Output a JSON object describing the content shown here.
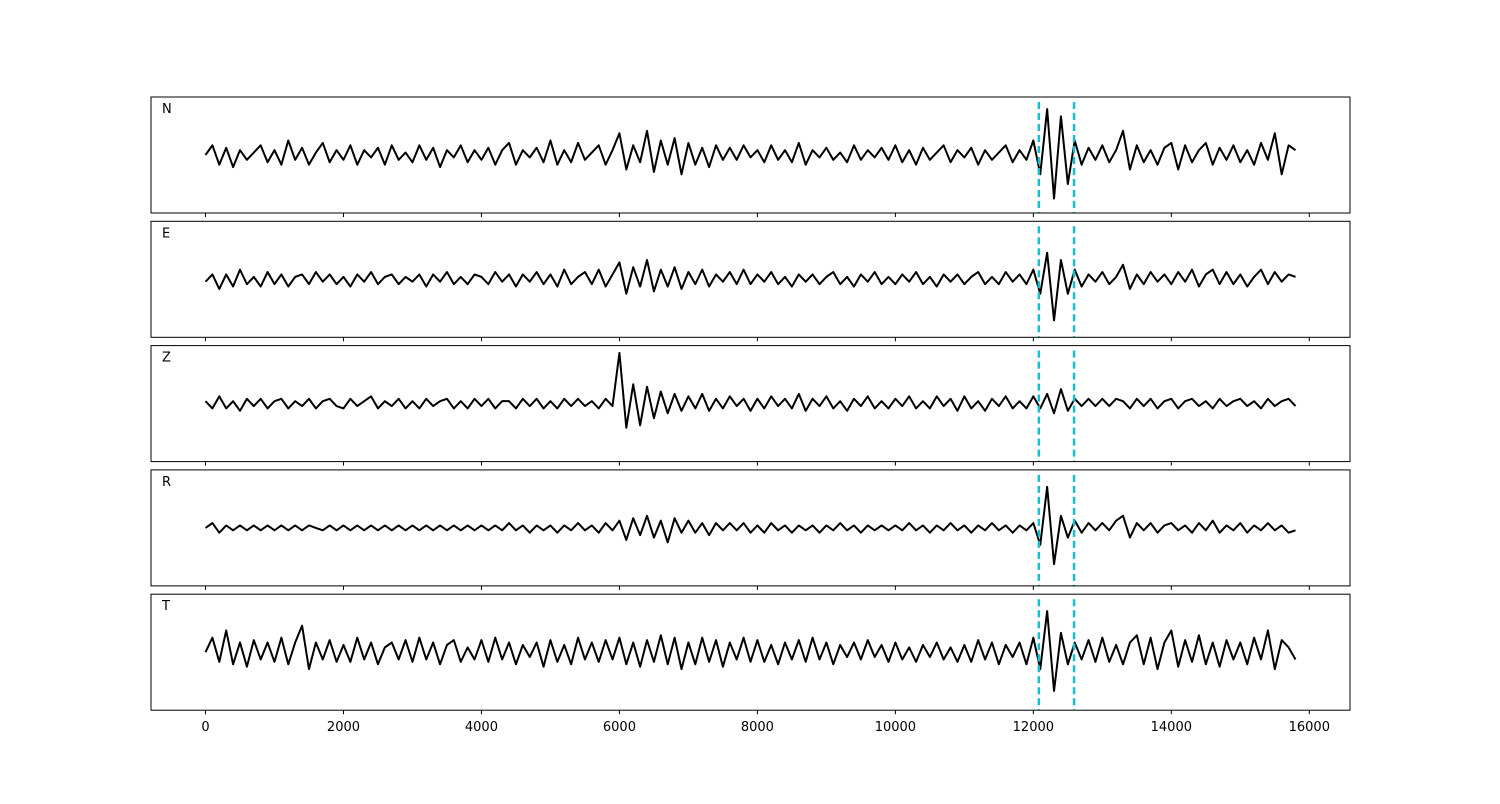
{
  "chart_data": {
    "type": "line",
    "layout": "stacked",
    "x": [
      0,
      100,
      200,
      300,
      400,
      500,
      600,
      700,
      800,
      900,
      1000,
      1100,
      1200,
      1300,
      1400,
      1500,
      1600,
      1700,
      1800,
      1900,
      2000,
      2100,
      2200,
      2300,
      2400,
      2500,
      2600,
      2700,
      2800,
      2900,
      3000,
      3100,
      3200,
      3300,
      3400,
      3500,
      3600,
      3700,
      3800,
      3900,
      4000,
      4100,
      4200,
      4300,
      4400,
      4500,
      4600,
      4700,
      4800,
      4900,
      5000,
      5100,
      5200,
      5300,
      5400,
      5500,
      5600,
      5700,
      5800,
      5900,
      6000,
      6100,
      6200,
      6300,
      6400,
      6500,
      6600,
      6700,
      6800,
      6900,
      7000,
      7100,
      7200,
      7300,
      7400,
      7500,
      7600,
      7700,
      7800,
      7900,
      8000,
      8100,
      8200,
      8300,
      8400,
      8500,
      8600,
      8700,
      8800,
      8900,
      9000,
      9100,
      9200,
      9300,
      9400,
      9500,
      9600,
      9700,
      9800,
      9900,
      10000,
      10100,
      10200,
      10300,
      10400,
      10500,
      10600,
      10700,
      10800,
      10900,
      11000,
      11100,
      11200,
      11300,
      11400,
      11500,
      11600,
      11700,
      11800,
      11900,
      12000,
      12100,
      12200,
      12300,
      12400,
      12500,
      12600,
      12700,
      12800,
      12900,
      13000,
      13100,
      13200,
      13300,
      13400,
      13500,
      13600,
      13700,
      13800,
      13900,
      14000,
      14100,
      14200,
      14300,
      14400,
      14500,
      14600,
      14700,
      14800,
      14900,
      15000,
      15100,
      15200,
      15300,
      15400,
      15500,
      15600,
      15700,
      15800
    ],
    "xlim": [
      -790,
      16590
    ],
    "xticks": [
      0,
      2000,
      4000,
      6000,
      8000,
      10000,
      12000,
      14000,
      16000
    ],
    "ylim": [
      -1.2,
      1.2
    ],
    "vlines": [
      12080,
      12590
    ],
    "vline_color": "#17becf",
    "series": [
      {
        "name": "N",
        "color": "#000000",
        "values": [
          0,
          0.2,
          -0.2,
          0.15,
          -0.25,
          0.1,
          -0.1,
          0.05,
          0.2,
          -0.15,
          0.1,
          -0.2,
          0.3,
          -0.1,
          0.15,
          -0.2,
          0.05,
          0.25,
          -0.15,
          0.1,
          -0.1,
          0.2,
          -0.2,
          0.1,
          -0.05,
          0.15,
          -0.2,
          0.2,
          -0.1,
          0.05,
          -0.15,
          0.2,
          -0.1,
          0.15,
          -0.25,
          0.1,
          -0.05,
          0.2,
          -0.15,
          0.1,
          -0.1,
          0.15,
          -0.2,
          0.1,
          0.25,
          -0.2,
          0.1,
          -0.05,
          0.15,
          -0.15,
          0.3,
          -0.2,
          0.1,
          -0.15,
          0.25,
          -0.1,
          0.05,
          0.2,
          -0.2,
          0.1,
          0.45,
          -0.3,
          0.2,
          -0.15,
          0.5,
          -0.35,
          0.3,
          -0.2,
          0.35,
          -0.4,
          0.25,
          -0.2,
          0.15,
          -0.25,
          0.2,
          -0.1,
          0.15,
          -0.1,
          0.2,
          -0.05,
          0.1,
          -0.15,
          0.2,
          -0.1,
          0.1,
          -0.15,
          0.25,
          -0.2,
          0.1,
          -0.05,
          0.15,
          -0.1,
          0.05,
          -0.15,
          0.2,
          -0.1,
          0.1,
          -0.05,
          0.15,
          -0.1,
          0.2,
          -0.15,
          0.1,
          -0.2,
          0.15,
          -0.1,
          0.05,
          0.2,
          -0.15,
          0.1,
          -0.05,
          0.15,
          -0.2,
          0.1,
          -0.1,
          0.05,
          0.2,
          -0.15,
          0.1,
          -0.1,
          0.3,
          -0.4,
          0.95,
          -0.9,
          0.8,
          -0.6,
          0.3,
          -0.2,
          0.15,
          -0.1,
          0.2,
          -0.15,
          0.1,
          0.5,
          -0.3,
          0.2,
          -0.15,
          0.1,
          -0.2,
          0.15,
          0.25,
          -0.3,
          0.2,
          -0.15,
          0.1,
          0.25,
          -0.2,
          0.15,
          -0.1,
          0.2,
          -0.15,
          0.1,
          -0.2,
          0.25,
          -0.1,
          0.45,
          -0.4,
          0.2,
          0.1
        ]
      },
      {
        "name": "E",
        "color": "#000000",
        "values": [
          -0.05,
          0.1,
          -0.2,
          0.1,
          -0.15,
          0.2,
          -0.1,
          0.05,
          -0.15,
          0.15,
          -0.1,
          0.1,
          -0.15,
          0.05,
          0.1,
          -0.1,
          0.15,
          -0.05,
          0.1,
          -0.1,
          0.05,
          -0.15,
          0.1,
          -0.05,
          0.15,
          -0.1,
          0.05,
          0.1,
          -0.1,
          0.05,
          -0.05,
          0.1,
          -0.15,
          0.1,
          -0.05,
          0.15,
          -0.1,
          0.05,
          -0.1,
          0.1,
          0.05,
          -0.1,
          0.15,
          -0.05,
          0.1,
          -0.15,
          0.1,
          -0.05,
          0.15,
          -0.1,
          0.1,
          -0.15,
          0.2,
          -0.1,
          0.05,
          0.15,
          -0.1,
          0.2,
          -0.15,
          0.1,
          0.35,
          -0.3,
          0.25,
          -0.15,
          0.4,
          -0.25,
          0.2,
          -0.15,
          0.25,
          -0.2,
          0.15,
          -0.1,
          0.2,
          -0.15,
          0.1,
          -0.05,
          0.15,
          -0.1,
          0.2,
          -0.1,
          0.1,
          -0.05,
          0.15,
          -0.1,
          0.05,
          -0.15,
          0.1,
          -0.05,
          0.1,
          -0.1,
          0.05,
          0.15,
          -0.1,
          0.05,
          -0.15,
          0.1,
          -0.05,
          0.15,
          -0.1,
          0.05,
          -0.1,
          0.1,
          -0.05,
          0.15,
          -0.1,
          0.05,
          -0.15,
          0.1,
          -0.05,
          0.1,
          -0.1,
          0.05,
          0.15,
          -0.1,
          0.05,
          -0.1,
          0.15,
          -0.05,
          0.1,
          -0.1,
          0.2,
          -0.3,
          0.55,
          -0.85,
          0.4,
          -0.3,
          0.2,
          -0.15,
          0.1,
          -0.05,
          0.15,
          -0.1,
          0.05,
          0.3,
          -0.2,
          0.1,
          -0.1,
          0.15,
          -0.05,
          0.1,
          -0.1,
          0.15,
          -0.05,
          0.2,
          -0.15,
          0.1,
          0.2,
          -0.1,
          0.15,
          -0.1,
          0.1,
          -0.15,
          0.05,
          0.2,
          -0.1,
          0.15,
          -0.05,
          0.1,
          0.05
        ]
      },
      {
        "name": "Z",
        "color": "#000000",
        "values": [
          0.05,
          -0.1,
          0.15,
          -0.1,
          0.05,
          -0.15,
          0.1,
          -0.05,
          0.1,
          -0.1,
          0.05,
          0.1,
          -0.1,
          0.05,
          -0.05,
          0.1,
          -0.1,
          0.05,
          0.1,
          -0.05,
          -0.1,
          0.1,
          -0.05,
          0.05,
          0.15,
          -0.1,
          0.05,
          -0.05,
          0.1,
          -0.1,
          0.05,
          -0.1,
          0.1,
          -0.05,
          0.05,
          0.1,
          -0.1,
          0.05,
          -0.1,
          0.1,
          -0.05,
          0.1,
          -0.1,
          0.05,
          0.05,
          -0.1,
          0.1,
          -0.05,
          0.1,
          -0.1,
          0.05,
          -0.1,
          0.1,
          -0.05,
          0.1,
          -0.05,
          0.05,
          -0.1,
          0.1,
          -0.05,
          1.05,
          -0.5,
          0.4,
          -0.45,
          0.35,
          -0.3,
          0.25,
          -0.2,
          0.2,
          -0.15,
          0.15,
          -0.1,
          0.2,
          -0.15,
          0.1,
          -0.1,
          0.15,
          -0.05,
          0.1,
          -0.15,
          0.1,
          -0.1,
          0.15,
          -0.05,
          0.1,
          -0.1,
          0.2,
          -0.15,
          0.1,
          -0.05,
          0.15,
          -0.1,
          0.05,
          -0.15,
          0.1,
          -0.05,
          0.15,
          -0.1,
          0.05,
          -0.1,
          0.1,
          -0.05,
          0.15,
          -0.1,
          0.05,
          -0.1,
          0.15,
          -0.05,
          0.1,
          -0.15,
          0.15,
          -0.1,
          0.05,
          -0.15,
          0.1,
          -0.05,
          0.15,
          -0.1,
          0.05,
          -0.1,
          0.15,
          -0.1,
          0.2,
          -0.2,
          0.3,
          -0.15,
          0.1,
          -0.05,
          0.1,
          -0.05,
          0.1,
          -0.05,
          0.1,
          0.05,
          -0.1,
          0.1,
          -0.05,
          0.1,
          -0.1,
          0.05,
          0.1,
          -0.1,
          0.05,
          0.1,
          -0.05,
          0.05,
          -0.1,
          0.1,
          -0.05,
          0.05,
          0.1,
          -0.05,
          0.05,
          -0.1,
          0.1,
          -0.05,
          0.05,
          0.1,
          -0.05
        ]
      },
      {
        "name": "R",
        "color": "#000000",
        "values": [
          0,
          0.1,
          -0.1,
          0.05,
          -0.05,
          0.05,
          -0.05,
          0.05,
          -0.05,
          0.05,
          -0.05,
          0.05,
          -0.05,
          0.05,
          -0.05,
          0.05,
          0,
          -0.05,
          0.05,
          -0.05,
          0.05,
          -0.05,
          0.05,
          -0.05,
          0.05,
          -0.05,
          0.05,
          -0.05,
          0.05,
          -0.05,
          0.05,
          -0.05,
          0.05,
          -0.05,
          0.05,
          -0.05,
          0.05,
          -0.05,
          0.05,
          -0.05,
          0.05,
          -0.05,
          0.05,
          -0.05,
          0.1,
          -0.05,
          0.05,
          -0.1,
          0.05,
          -0.05,
          0.05,
          -0.1,
          0.05,
          -0.05,
          0.1,
          -0.05,
          0.05,
          -0.1,
          0.1,
          -0.05,
          0.15,
          -0.25,
          0.2,
          -0.15,
          0.25,
          -0.2,
          0.15,
          -0.3,
          0.2,
          -0.1,
          0.15,
          -0.1,
          0.1,
          -0.15,
          0.1,
          -0.05,
          0.1,
          -0.05,
          0.1,
          -0.1,
          0.05,
          -0.1,
          0.1,
          -0.05,
          0.05,
          -0.1,
          0.05,
          -0.05,
          0.05,
          -0.1,
          0.05,
          -0.05,
          0.1,
          -0.05,
          0.05,
          -0.1,
          0.05,
          -0.05,
          0.05,
          -0.05,
          0.05,
          -0.05,
          0.1,
          -0.05,
          0.05,
          -0.1,
          0.05,
          -0.05,
          0.1,
          -0.05,
          0.05,
          -0.1,
          0.05,
          -0.05,
          0.1,
          -0.05,
          0.05,
          -0.1,
          0.05,
          -0.05,
          0.1,
          -0.35,
          0.85,
          -0.75,
          0.25,
          -0.2,
          0.15,
          -0.1,
          0.1,
          -0.05,
          0.1,
          -0.05,
          0.15,
          0.25,
          -0.2,
          0.1,
          -0.05,
          0.1,
          -0.1,
          0.05,
          0.1,
          -0.05,
          0.05,
          -0.1,
          0.1,
          -0.05,
          0.15,
          -0.1,
          0.05,
          -0.05,
          0.1,
          -0.1,
          0.05,
          -0.05,
          0.1,
          -0.05,
          0.05,
          -0.1,
          -0.05
        ]
      },
      {
        "name": "T",
        "color": "#000000",
        "values": [
          0,
          0.3,
          -0.2,
          0.45,
          -0.25,
          0.2,
          -0.3,
          0.25,
          -0.15,
          0.2,
          -0.2,
          0.3,
          -0.25,
          0.2,
          0.55,
          -0.35,
          0.2,
          -0.15,
          0.25,
          -0.2,
          0.15,
          -0.2,
          0.3,
          -0.15,
          0.2,
          -0.25,
          0.1,
          0.2,
          -0.15,
          0.25,
          -0.2,
          0.3,
          -0.15,
          0.2,
          -0.25,
          0.15,
          0.25,
          -0.2,
          0.1,
          -0.15,
          0.25,
          -0.2,
          0.3,
          -0.15,
          0.2,
          -0.25,
          0.15,
          -0.1,
          0.2,
          -0.3,
          0.25,
          -0.2,
          0.15,
          -0.25,
          0.3,
          -0.15,
          0.2,
          -0.2,
          0.25,
          -0.15,
          0.3,
          -0.25,
          0.2,
          -0.3,
          0.25,
          -0.2,
          0.35,
          -0.25,
          0.3,
          -0.35,
          0.2,
          -0.25,
          0.3,
          -0.2,
          0.25,
          -0.3,
          0.2,
          -0.15,
          0.3,
          -0.2,
          0.25,
          -0.2,
          0.15,
          -0.25,
          0.2,
          -0.15,
          0.25,
          -0.2,
          0.3,
          -0.15,
          0.2,
          -0.25,
          0.15,
          -0.1,
          0.2,
          -0.15,
          0.25,
          -0.1,
          0.15,
          -0.2,
          0.2,
          -0.15,
          0.1,
          -0.2,
          0.15,
          -0.1,
          0.2,
          -0.15,
          0.1,
          -0.2,
          0.15,
          -0.2,
          0.25,
          -0.15,
          0.2,
          -0.25,
          0.15,
          -0.1,
          0.2,
          -0.25,
          0.3,
          -0.35,
          0.85,
          -0.8,
          0.4,
          -0.25,
          0.2,
          -0.15,
          0.25,
          -0.2,
          0.3,
          -0.2,
          0.15,
          -0.25,
          0.2,
          0.35,
          -0.25,
          0.3,
          -0.35,
          0.2,
          0.45,
          -0.3,
          0.25,
          -0.2,
          0.35,
          -0.25,
          0.2,
          -0.3,
          0.25,
          -0.15,
          0.2,
          -0.25,
          0.3,
          -0.15,
          0.45,
          -0.35,
          0.25,
          0.1,
          -0.15
        ]
      }
    ]
  }
}
